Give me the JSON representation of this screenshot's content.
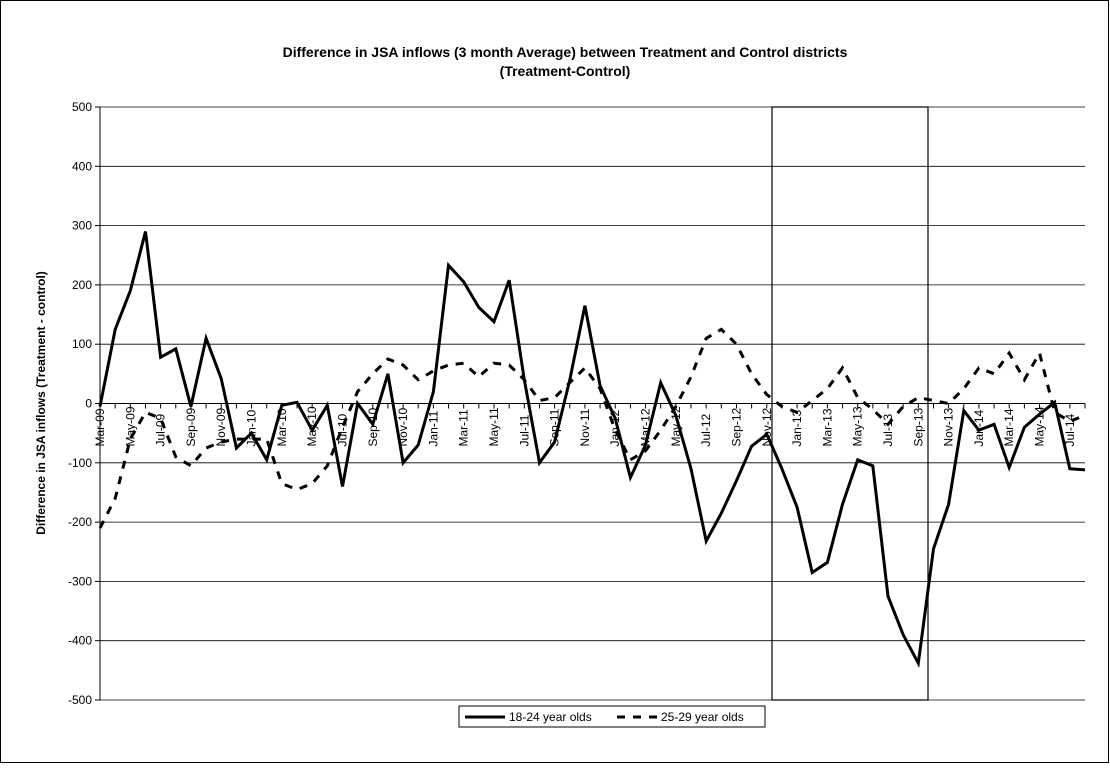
{
  "chart_data": {
    "type": "line",
    "title": "Difference in JSA inflows (3 month Average) between Treatment and Control districts",
    "subtitle": "(Treatment-Control)",
    "y_label": "Difference in JSA inflows (Treatment - control)",
    "categories": [
      "Mar-09",
      null,
      "May-09",
      null,
      "Jul-09",
      null,
      "Sep-09",
      null,
      "Nov-09",
      null,
      "Jan-10",
      null,
      "Mar-10",
      null,
      "May-10",
      null,
      "Jul-10",
      null,
      "Sep-10",
      null,
      "Nov-10",
      null,
      "Jan-11",
      null,
      "Mar-11",
      null,
      "May-11",
      null,
      "Jul-11",
      null,
      "Sep-11",
      null,
      "Nov-11",
      null,
      "Jan-12",
      null,
      "Mar-12",
      null,
      "May-12",
      null,
      "Jul-12",
      null,
      "Sep-12",
      null,
      "Nov-12",
      null,
      "Jan-13",
      null,
      "Mar-13",
      null,
      "May-13",
      null,
      "Jul-13",
      null,
      "Sep-13",
      null,
      "Nov-13",
      null,
      "Jan-14",
      null,
      "Mar-14",
      null,
      "May-14",
      null,
      "Jul-14",
      null
    ],
    "series": [
      {
        "name": "18-24 year olds",
        "color": "#000000",
        "dash": "solid",
        "values": [
          -5,
          125,
          190,
          290,
          78,
          92,
          -5,
          110,
          42,
          -75,
          -50,
          -95,
          -3,
          2,
          -45,
          -3,
          -140,
          0,
          -35,
          50,
          -100,
          -70,
          20,
          233,
          205,
          162,
          138,
          208,
          40,
          -100,
          -65,
          40,
          165,
          30,
          -25,
          -125,
          -70,
          35,
          -20,
          -110,
          -232,
          -185,
          -130,
          -72,
          -52,
          -110,
          -175,
          -285,
          -268,
          -170,
          -95,
          -105,
          -325,
          -390,
          -438,
          -245,
          -170,
          -12,
          -45,
          -35,
          -108,
          -40,
          -18,
          2,
          -110,
          -112
        ]
      },
      {
        "name": "25-29 year olds",
        "color": "#000000",
        "dash": "dashed",
        "values": [
          -210,
          -160,
          -60,
          -15,
          -25,
          -90,
          -105,
          -75,
          -65,
          -60,
          -60,
          -60,
          -135,
          -145,
          -135,
          -105,
          -40,
          20,
          50,
          75,
          65,
          40,
          55,
          65,
          68,
          45,
          68,
          65,
          40,
          5,
          10,
          35,
          60,
          25,
          -45,
          -95,
          -80,
          -45,
          -5,
          45,
          110,
          125,
          100,
          50,
          15,
          -5,
          -15,
          5,
          25,
          60,
          10,
          -10,
          -35,
          -5,
          10,
          5,
          0,
          25,
          60,
          50,
          85,
          40,
          85,
          -15,
          -30,
          -20
        ]
      }
    ],
    "ylim": [
      -500,
      500
    ],
    "yticks": [
      -500,
      -400,
      -300,
      -200,
      -100,
      0,
      100,
      200,
      300,
      400,
      500
    ],
    "grid": true,
    "legend": "bottom"
  }
}
